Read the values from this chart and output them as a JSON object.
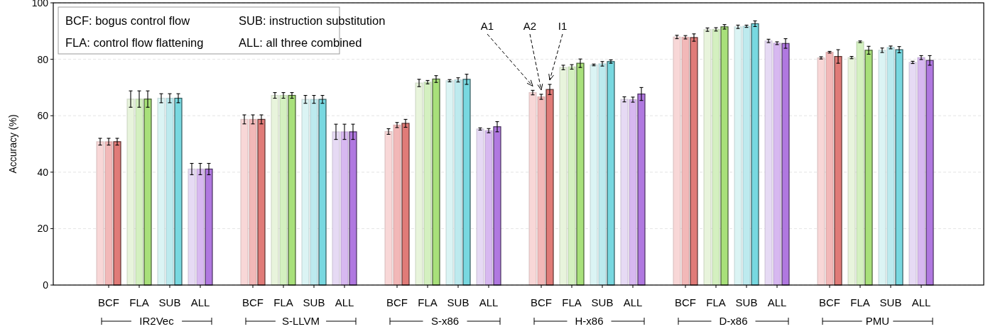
{
  "chart_data": {
    "type": "bar",
    "ylabel": "Accuracy (%)",
    "categories": [
      "BCF",
      "FLA",
      "SUB",
      "ALL",
      "BCF",
      "FLA",
      "SUB",
      "ALL",
      "BCF",
      "FLA",
      "SUB",
      "ALL",
      "BCF",
      "FLA",
      "SUB",
      "ALL",
      "BCF",
      "FLA",
      "SUB",
      "ALL",
      "BCF",
      "FLA",
      "SUB",
      "ALL"
    ],
    "series": [
      {
        "colors": [
          "#f8d7d7",
          "#e8f4dc",
          "#dbf4f4",
          "#e6daf4",
          "#f8d7d7",
          "#e8f4dc",
          "#dbf4f4",
          "#e6daf4",
          "#f8d7d7",
          "#e8f4dc",
          "#dbf4f4",
          "#e6daf4",
          "#f8d7d7",
          "#e8f4dc",
          "#dbf4f4",
          "#e6daf4",
          "#f8d7d7",
          "#e8f4dc",
          "#dbf4f4",
          "#e6daf4",
          "#f8d7d7",
          "#e8f4dc",
          "#dbf4f4",
          "#e6daf4"
        ],
        "values": [
          50.8,
          65.9,
          66.2,
          41.1,
          58.7,
          67.2,
          65.8,
          54.3,
          54.4,
          71.6,
          72.4,
          55.3,
          68.2,
          77.1,
          78.0,
          65.8,
          87.9,
          90.5,
          91.5,
          86.5,
          80.5,
          80.6,
          83.2,
          78.9
        ],
        "errors": [
          1.2,
          2.9,
          1.6,
          2.0,
          1.6,
          1.0,
          1.4,
          2.7,
          1.0,
          1.3,
          0.4,
          0.4,
          0.8,
          0.8,
          0.3,
          0.9,
          0.6,
          0.6,
          0.6,
          0.6,
          0.4,
          0.4,
          0.8,
          0.4
        ]
      },
      {
        "colors": [
          "#f2b8b8",
          "#d4f0c0",
          "#bdeaee",
          "#d7b8f0",
          "#f2b8b8",
          "#d4f0c0",
          "#bdeaee",
          "#d7b8f0",
          "#f2b8b8",
          "#d4f0c0",
          "#bdeaee",
          "#d7b8f0",
          "#f2b8b8",
          "#d4f0c0",
          "#bdeaee",
          "#d7b8f0",
          "#f2b8b8",
          "#d4f0c0",
          "#bdeaee",
          "#d7b8f0",
          "#f2b8b8",
          "#d4f0c0",
          "#bdeaee",
          "#d7b8f0"
        ],
        "values": [
          50.8,
          65.9,
          66.2,
          41.1,
          58.7,
          67.2,
          65.8,
          54.3,
          56.7,
          71.9,
          72.7,
          54.7,
          66.7,
          77.3,
          78.4,
          65.7,
          87.8,
          90.6,
          91.7,
          85.7,
          82.5,
          86.2,
          84.2,
          80.6
        ],
        "errors": [
          1.2,
          2.9,
          1.6,
          2.0,
          1.6,
          1.0,
          1.4,
          2.7,
          0.9,
          0.6,
          0.75,
          0.75,
          0.9,
          0.8,
          0.8,
          0.9,
          0.6,
          0.6,
          0.4,
          0.5,
          0.3,
          0.3,
          0.5,
          0.7
        ]
      },
      {
        "colors": [
          "#e07b78",
          "#a8e07a",
          "#78d8e0",
          "#b078e0",
          "#e07b78",
          "#a8e07a",
          "#78d8e0",
          "#b078e0",
          "#e07b78",
          "#a8e07a",
          "#78d8e0",
          "#b078e0",
          "#e07b78",
          "#a8e07a",
          "#78d8e0",
          "#b078e0",
          "#e07b78",
          "#a8e07a",
          "#78d8e0",
          "#b078e0",
          "#e07b78",
          "#a8e07a",
          "#78d8e0",
          "#b078e0"
        ],
        "values": [
          50.8,
          65.9,
          66.2,
          41.1,
          58.7,
          67.2,
          65.8,
          54.3,
          57.3,
          73.0,
          72.9,
          56.1,
          69.3,
          78.6,
          79.2,
          67.7,
          87.7,
          91.5,
          92.6,
          85.6,
          81.0,
          83.2,
          83.4,
          79.6
        ],
        "errors": [
          1.2,
          2.9,
          1.6,
          2.0,
          1.6,
          1.0,
          1.4,
          2.7,
          1.4,
          1.2,
          1.8,
          1.8,
          1.8,
          1.5,
          0.6,
          2.3,
          1.3,
          0.8,
          1.0,
          1.7,
          2.4,
          1.4,
          1.1,
          1.7
        ]
      }
    ],
    "ylim": [
      0,
      100
    ],
    "yticks": [
      0,
      20,
      40,
      60,
      80,
      100
    ],
    "grid": "y",
    "annotations": [
      "BCF: bogus control flow",
      "FLA: control flow flattening",
      "SUB: instruction substitution",
      "ALL: all three combined",
      "IR2Vec",
      "S-LLVM",
      "S-x86",
      "H-x86",
      "D-x86",
      "PMU",
      "A1",
      "A2",
      "I1"
    ]
  }
}
